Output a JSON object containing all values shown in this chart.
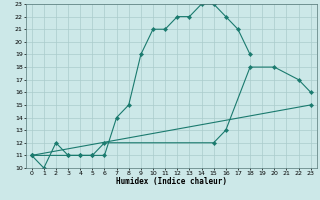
{
  "xlabel": "Humidex (Indice chaleur)",
  "background_color": "#cce8e8",
  "grid_color": "#aacccc",
  "line_color": "#1a7a6e",
  "xlim": [
    -0.5,
    23.5
  ],
  "ylim": [
    10,
    23
  ],
  "xticks": [
    0,
    1,
    2,
    3,
    4,
    5,
    6,
    7,
    8,
    9,
    10,
    11,
    12,
    13,
    14,
    15,
    16,
    17,
    18,
    19,
    20,
    21,
    22,
    23
  ],
  "yticks": [
    10,
    11,
    12,
    13,
    14,
    15,
    16,
    17,
    18,
    19,
    20,
    21,
    22,
    23
  ],
  "line1_x": [
    0,
    1,
    2,
    3,
    4,
    5,
    6,
    7,
    8,
    9,
    10,
    11,
    12,
    13,
    14,
    15,
    16,
    17,
    18
  ],
  "line1_y": [
    11,
    10,
    12,
    11,
    11,
    11,
    11,
    14,
    15,
    19,
    21,
    21,
    22,
    22,
    23,
    23,
    22,
    21,
    19
  ],
  "line2_x": [
    0,
    3,
    4,
    5,
    6,
    15,
    16,
    18,
    20,
    22,
    23
  ],
  "line2_y": [
    11,
    11,
    11,
    11,
    12,
    12,
    13,
    18,
    18,
    17,
    16
  ],
  "line3_x": [
    0,
    23
  ],
  "line3_y": [
    11,
    15
  ]
}
